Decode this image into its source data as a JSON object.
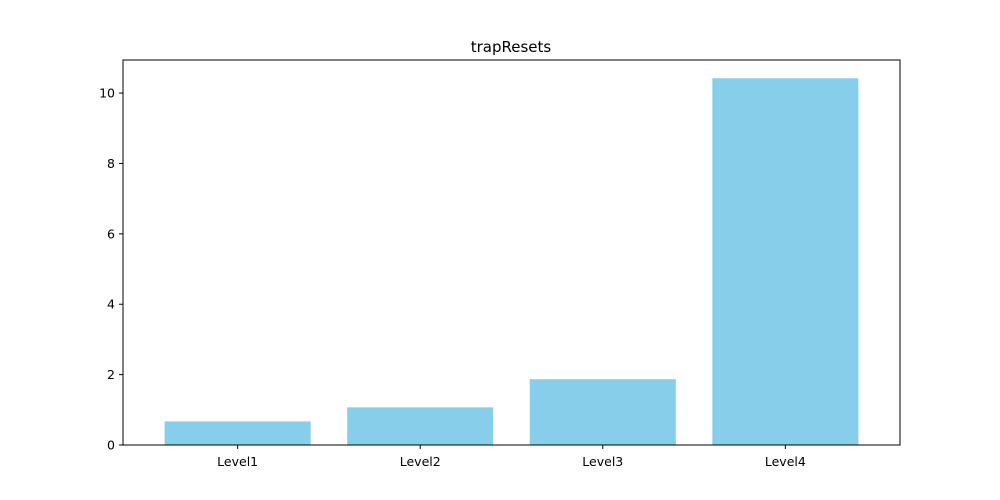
{
  "chart_data": {
    "type": "bar",
    "title": "trapResets",
    "xlabel": "",
    "ylabel": "",
    "categories": [
      "Level1",
      "Level2",
      "Level3",
      "Level4"
    ],
    "values": [
      0.67,
      1.07,
      1.87,
      10.42
    ],
    "ylim": [
      0,
      10.94
    ],
    "yticks": [
      0,
      2,
      4,
      6,
      8,
      10
    ],
    "grid": false,
    "legend": "none",
    "bar_color": "#87CEEB",
    "axis_color": "#000000"
  }
}
